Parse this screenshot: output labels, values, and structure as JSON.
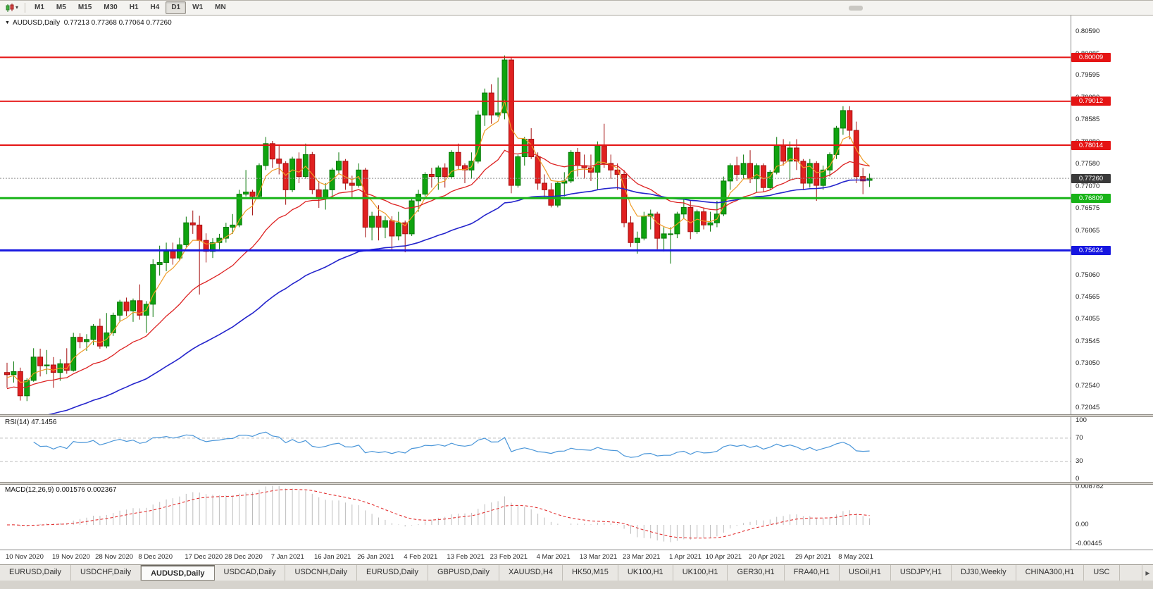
{
  "toolbar": {
    "timeframes": [
      "M1",
      "M5",
      "M15",
      "M30",
      "H1",
      "H4",
      "D1",
      "W1",
      "MN"
    ],
    "active_timeframe": "D1"
  },
  "window_caption": {
    "symbol": "AUDUSD,Daily",
    "ohlc": "0.77213 0.77368 0.77064 0.77260"
  },
  "price_axis": {
    "ticks": [
      "0.80590",
      "0.80085",
      "0.79595",
      "0.79090",
      "0.78585",
      "0.78080",
      "0.77580",
      "0.77070",
      "0.76575",
      "0.76065",
      "0.75560",
      "0.75060",
      "0.74565",
      "0.74055",
      "0.73545",
      "0.73050",
      "0.72540",
      "0.72045"
    ]
  },
  "levels": [
    {
      "label": "0.80009",
      "price": 0.80009,
      "color": "#e51414",
      "width": 2
    },
    {
      "label": "0.79012",
      "price": 0.79012,
      "color": "#e51414",
      "width": 2
    },
    {
      "label": "0.78014",
      "price": 0.78014,
      "color": "#e51414",
      "width": 2
    },
    {
      "label": "0.76809",
      "price": 0.76809,
      "color": "#18b418",
      "width": 3
    },
    {
      "label": "0.75624",
      "price": 0.75624,
      "color": "#1616e0",
      "width": 3
    }
  ],
  "current_price": {
    "label": "0.77260",
    "price": 0.7726,
    "box_color": "#3a3a3a"
  },
  "date_axis": [
    {
      "label": "10 Nov 2020",
      "i": 0
    },
    {
      "label": "19 Nov 2020",
      "i": 7
    },
    {
      "label": "28 Nov 2020",
      "i": 13.5
    },
    {
      "label": "8 Dec 2020",
      "i": 20
    },
    {
      "label": "17 Dec 2020",
      "i": 27
    },
    {
      "label": "28 Dec 2020",
      "i": 33
    },
    {
      "label": "7 Jan 2021",
      "i": 40
    },
    {
      "label": "16 Jan 2021",
      "i": 46.5
    },
    {
      "label": "26 Jan 2021",
      "i": 53
    },
    {
      "label": "4 Feb 2021",
      "i": 60
    },
    {
      "label": "13 Feb 2021",
      "i": 66.5
    },
    {
      "label": "23 Feb 2021",
      "i": 73
    },
    {
      "label": "4 Mar 2021",
      "i": 80
    },
    {
      "label": "13 Mar 2021",
      "i": 86.5
    },
    {
      "label": "23 Mar 2021",
      "i": 93
    },
    {
      "label": "1 Apr 2021",
      "i": 100
    },
    {
      "label": "10 Apr 2021",
      "i": 105.5
    },
    {
      "label": "20 Apr 2021",
      "i": 112
    },
    {
      "label": "29 Apr 2021",
      "i": 119
    },
    {
      "label": "8 May 2021",
      "i": 125.5
    }
  ],
  "rsi_panel": {
    "name": "RSI(14)",
    "value": "47.1456",
    "period": 14,
    "levels": [
      70,
      30
    ],
    "scale_labels": [
      {
        "label": "100",
        "v": 100
      },
      {
        "label": "70",
        "v": 70
      },
      {
        "label": "30",
        "v": 30
      },
      {
        "label": "0",
        "v": 0
      }
    ],
    "line_color": "#4a96d9"
  },
  "macd_panel": {
    "name": "MACD(12,26,9)",
    "values": "0.001576 0.002367",
    "fast": 12,
    "slow": 26,
    "signal": 9,
    "scale_labels": [
      {
        "label": "0.008782",
        "v": 0.008782
      },
      {
        "label": "0.00",
        "v": 0
      },
      {
        "label": "-0.00445",
        "v": -0.004455
      }
    ],
    "histogram_color": "#bdbdbd",
    "signal_color": "#e02020"
  },
  "tabs": {
    "active_index": 2,
    "items": [
      "EURUSD,Daily",
      "USDCHF,Daily",
      "AUDUSD,Daily",
      "USDCAD,Daily",
      "USDCNH,Daily",
      "EURUSD,Daily",
      "GBPUSD,Daily",
      "XAUUSD,H4",
      "HK50,M15",
      "UK100,H1",
      "UK100,H1",
      "GER30,H1",
      "FRA40,H1",
      "USOil,H1",
      "USDJPY,H1",
      "DJ30,Weekly",
      "CHINA300,H1",
      "USC"
    ],
    "scroll_right_icon": "▶"
  },
  "chart_data": {
    "type": "candlestick",
    "symbol": "AUDUSD",
    "timeframe": "Daily",
    "ohlc_current": {
      "open": 0.77213,
      "high": 0.77368,
      "low": 0.77064,
      "close": 0.7726
    },
    "price_scale": {
      "max": 0.8096,
      "min": 0.719
    },
    "bull_color": "#0fa30f",
    "bull_border": "#077707",
    "bear_color": "#e02020",
    "bear_border": "#a51212",
    "moving_averages": [
      {
        "name": "ma-fast",
        "period": 5,
        "color": "#f09c28",
        "seed": 0.727,
        "width": 1.2
      },
      {
        "name": "ma-mid",
        "period": 20,
        "color": "#dd2222",
        "seed": 0.7245,
        "width": 1.3
      },
      {
        "name": "ma-slow",
        "period": 55,
        "color": "#2424cc",
        "seed": 0.716,
        "width": 1.6
      }
    ],
    "candles": [
      [
        "2020-11-10",
        0.7285,
        0.7307,
        0.725,
        0.728
      ],
      [
        "2020-11-11",
        0.728,
        0.731,
        0.7262,
        0.7287
      ],
      [
        "2020-11-12",
        0.7287,
        0.7296,
        0.7221,
        0.7232
      ],
      [
        "2020-11-13",
        0.7232,
        0.7272,
        0.722,
        0.7267
      ],
      [
        "2020-11-16",
        0.7267,
        0.734,
        0.7264,
        0.732
      ],
      [
        "2020-11-17",
        0.732,
        0.7339,
        0.7276,
        0.73
      ],
      [
        "2020-11-18",
        0.73,
        0.7336,
        0.7281,
        0.7302
      ],
      [
        "2020-11-19",
        0.7302,
        0.732,
        0.725,
        0.7285
      ],
      [
        "2020-11-20",
        0.7285,
        0.7315,
        0.7266,
        0.7305
      ],
      [
        "2020-11-23",
        0.7305,
        0.734,
        0.7282,
        0.729
      ],
      [
        "2020-11-24",
        0.729,
        0.7375,
        0.7287,
        0.7365
      ],
      [
        "2020-11-25",
        0.7365,
        0.7374,
        0.734,
        0.7355
      ],
      [
        "2020-11-26",
        0.7355,
        0.7372,
        0.7334,
        0.736
      ],
      [
        "2020-11-27",
        0.736,
        0.7395,
        0.7347,
        0.739
      ],
      [
        "2020-11-30",
        0.739,
        0.7407,
        0.7339,
        0.7345
      ],
      [
        "2020-12-01",
        0.7345,
        0.742,
        0.734,
        0.7375
      ],
      [
        "2020-12-02",
        0.7375,
        0.7421,
        0.7368,
        0.7415
      ],
      [
        "2020-12-03",
        0.7415,
        0.745,
        0.74,
        0.7445
      ],
      [
        "2020-12-04",
        0.7445,
        0.7455,
        0.7413,
        0.7425
      ],
      [
        "2020-12-07",
        0.7425,
        0.7453,
        0.74,
        0.7448
      ],
      [
        "2020-12-08",
        0.7448,
        0.7485,
        0.7405,
        0.7415
      ],
      [
        "2020-12-09",
        0.7415,
        0.7447,
        0.7375,
        0.744
      ],
      [
        "2020-12-10",
        0.744,
        0.7542,
        0.7411,
        0.753
      ],
      [
        "2020-12-11",
        0.753,
        0.7573,
        0.7505,
        0.7535
      ],
      [
        "2020-12-14",
        0.7535,
        0.758,
        0.7515,
        0.756
      ],
      [
        "2020-12-15",
        0.756,
        0.758,
        0.753,
        0.7545
      ],
      [
        "2020-12-16",
        0.7545,
        0.7591,
        0.754,
        0.7575
      ],
      [
        "2020-12-17",
        0.7575,
        0.7639,
        0.757,
        0.7625
      ],
      [
        "2020-12-18",
        0.7625,
        0.7653,
        0.76,
        0.762
      ],
      [
        "2020-12-21",
        0.762,
        0.7641,
        0.7462,
        0.7585
      ],
      [
        "2020-12-22",
        0.7585,
        0.7601,
        0.7535,
        0.756
      ],
      [
        "2020-12-23",
        0.756,
        0.759,
        0.7545,
        0.758
      ],
      [
        "2020-12-24",
        0.758,
        0.76,
        0.7565,
        0.759
      ],
      [
        "2020-12-28",
        0.759,
        0.7625,
        0.758,
        0.7615
      ],
      [
        "2020-12-29",
        0.7615,
        0.7645,
        0.76,
        0.762
      ],
      [
        "2020-12-30",
        0.762,
        0.77,
        0.7615,
        0.769
      ],
      [
        "2020-12-31",
        0.769,
        0.7745,
        0.7685,
        0.7695
      ],
      [
        "2021-01-04",
        0.7695,
        0.77,
        0.7642,
        0.7685
      ],
      [
        "2021-01-05",
        0.7685,
        0.776,
        0.768,
        0.7755
      ],
      [
        "2021-01-06",
        0.7755,
        0.782,
        0.7745,
        0.7805
      ],
      [
        "2021-01-07",
        0.7805,
        0.7811,
        0.775,
        0.777
      ],
      [
        "2021-01-08",
        0.777,
        0.78,
        0.7735,
        0.776
      ],
      [
        "2021-01-11",
        0.776,
        0.7765,
        0.7666,
        0.77
      ],
      [
        "2021-01-12",
        0.77,
        0.7775,
        0.7695,
        0.777
      ],
      [
        "2021-01-13",
        0.777,
        0.7785,
        0.7715,
        0.773
      ],
      [
        "2021-01-14",
        0.773,
        0.7805,
        0.7725,
        0.778
      ],
      [
        "2021-01-15",
        0.778,
        0.7786,
        0.769,
        0.77
      ],
      [
        "2021-01-18",
        0.77,
        0.772,
        0.7659,
        0.768
      ],
      [
        "2021-01-19",
        0.768,
        0.7715,
        0.7655,
        0.77
      ],
      [
        "2021-01-20",
        0.77,
        0.775,
        0.7685,
        0.7745
      ],
      [
        "2021-01-21",
        0.7745,
        0.7785,
        0.7735,
        0.7765
      ],
      [
        "2021-01-22",
        0.7765,
        0.777,
        0.77,
        0.7715
      ],
      [
        "2021-01-25",
        0.7715,
        0.7732,
        0.768,
        0.771
      ],
      [
        "2021-01-26",
        0.771,
        0.776,
        0.7705,
        0.7745
      ],
      [
        "2021-01-27",
        0.7745,
        0.775,
        0.7592,
        0.7615
      ],
      [
        "2021-01-28",
        0.7615,
        0.765,
        0.7585,
        0.764
      ],
      [
        "2021-01-29",
        0.764,
        0.7665,
        0.7585,
        0.7615
      ],
      [
        "2021-02-01",
        0.7615,
        0.764,
        0.759,
        0.763
      ],
      [
        "2021-02-02",
        0.763,
        0.764,
        0.7562,
        0.7595
      ],
      [
        "2021-02-03",
        0.7595,
        0.765,
        0.7585,
        0.7625
      ],
      [
        "2021-02-04",
        0.7625,
        0.763,
        0.7558,
        0.76
      ],
      [
        "2021-02-05",
        0.76,
        0.768,
        0.7595,
        0.7675
      ],
      [
        "2021-02-08",
        0.7675,
        0.77,
        0.765,
        0.769
      ],
      [
        "2021-02-09",
        0.769,
        0.774,
        0.7685,
        0.7735
      ],
      [
        "2021-02-10",
        0.7735,
        0.775,
        0.7705,
        0.773
      ],
      [
        "2021-02-11",
        0.773,
        0.7755,
        0.77,
        0.775
      ],
      [
        "2021-02-12",
        0.775,
        0.776,
        0.7705,
        0.773
      ],
      [
        "2021-02-15",
        0.773,
        0.779,
        0.7725,
        0.7785
      ],
      [
        "2021-02-16",
        0.7785,
        0.7805,
        0.7745,
        0.7755
      ],
      [
        "2021-02-17",
        0.7755,
        0.776,
        0.7715,
        0.7745
      ],
      [
        "2021-02-18",
        0.7745,
        0.7785,
        0.7725,
        0.7765
      ],
      [
        "2021-02-19",
        0.7765,
        0.788,
        0.776,
        0.787
      ],
      [
        "2021-02-22",
        0.787,
        0.793,
        0.7845,
        0.792
      ],
      [
        "2021-02-23",
        0.792,
        0.794,
        0.785,
        0.787
      ],
      [
        "2021-02-24",
        0.787,
        0.7955,
        0.7865,
        0.7875
      ],
      [
        "2021-02-25",
        0.7875,
        0.8005,
        0.786,
        0.7995
      ],
      [
        "2021-02-26",
        0.7995,
        0.8,
        0.7692,
        0.771
      ],
      [
        "2021-03-01",
        0.771,
        0.778,
        0.7705,
        0.7775
      ],
      [
        "2021-03-02",
        0.7775,
        0.782,
        0.7755,
        0.7815
      ],
      [
        "2021-03-03",
        0.7815,
        0.784,
        0.777,
        0.7775
      ],
      [
        "2021-03-04",
        0.7775,
        0.7785,
        0.77,
        0.7715
      ],
      [
        "2021-03-05",
        0.7715,
        0.7735,
        0.768,
        0.77
      ],
      [
        "2021-03-08",
        0.77,
        0.7715,
        0.766,
        0.7665
      ],
      [
        "2021-03-09",
        0.7665,
        0.772,
        0.766,
        0.7715
      ],
      [
        "2021-03-10",
        0.7715,
        0.774,
        0.7685,
        0.772
      ],
      [
        "2021-03-11",
        0.772,
        0.779,
        0.7715,
        0.7785
      ],
      [
        "2021-03-12",
        0.7785,
        0.7795,
        0.773,
        0.7755
      ],
      [
        "2021-03-15",
        0.7755,
        0.778,
        0.7725,
        0.775
      ],
      [
        "2021-03-16",
        0.775,
        0.778,
        0.772,
        0.774
      ],
      [
        "2021-03-17",
        0.774,
        0.781,
        0.77,
        0.78
      ],
      [
        "2021-03-18",
        0.78,
        0.785,
        0.775,
        0.776
      ],
      [
        "2021-03-19",
        0.776,
        0.778,
        0.7725,
        0.7745
      ],
      [
        "2021-03-22",
        0.7745,
        0.776,
        0.77,
        0.7735
      ],
      [
        "2021-03-23",
        0.7735,
        0.7745,
        0.7615,
        0.7625
      ],
      [
        "2021-03-24",
        0.7625,
        0.764,
        0.757,
        0.758
      ],
      [
        "2021-03-25",
        0.758,
        0.7605,
        0.7555,
        0.759
      ],
      [
        "2021-03-26",
        0.759,
        0.765,
        0.7585,
        0.764
      ],
      [
        "2021-03-29",
        0.764,
        0.7655,
        0.761,
        0.7645
      ],
      [
        "2021-03-30",
        0.7645,
        0.765,
        0.7565,
        0.759
      ],
      [
        "2021-03-31",
        0.759,
        0.7615,
        0.756,
        0.76
      ],
      [
        "2021-04-01",
        0.76,
        0.7615,
        0.7532,
        0.76
      ],
      [
        "2021-04-05",
        0.76,
        0.765,
        0.759,
        0.7645
      ],
      [
        "2021-04-06",
        0.7645,
        0.768,
        0.7635,
        0.766
      ],
      [
        "2021-04-07",
        0.766,
        0.7675,
        0.7588,
        0.7605
      ],
      [
        "2021-04-08",
        0.7605,
        0.7655,
        0.76,
        0.765
      ],
      [
        "2021-04-09",
        0.765,
        0.766,
        0.761,
        0.762
      ],
      [
        "2021-04-12",
        0.762,
        0.765,
        0.7605,
        0.7625
      ],
      [
        "2021-04-13",
        0.7625,
        0.7675,
        0.7615,
        0.7645
      ],
      [
        "2021-04-14",
        0.7645,
        0.773,
        0.764,
        0.772
      ],
      [
        "2021-04-15",
        0.772,
        0.776,
        0.77,
        0.7755
      ],
      [
        "2021-04-16",
        0.7755,
        0.7775,
        0.772,
        0.7735
      ],
      [
        "2021-04-19",
        0.7735,
        0.778,
        0.7725,
        0.776
      ],
      [
        "2021-04-20",
        0.776,
        0.779,
        0.7715,
        0.7725
      ],
      [
        "2021-04-21",
        0.7725,
        0.776,
        0.7695,
        0.7755
      ],
      [
        "2021-04-22",
        0.7755,
        0.776,
        0.7695,
        0.7705
      ],
      [
        "2021-04-23",
        0.7705,
        0.7745,
        0.77,
        0.774
      ],
      [
        "2021-04-26",
        0.774,
        0.782,
        0.7735,
        0.78
      ],
      [
        "2021-04-27",
        0.78,
        0.7815,
        0.7755,
        0.7765
      ],
      [
        "2021-04-28",
        0.7765,
        0.781,
        0.772,
        0.7795
      ],
      [
        "2021-04-29",
        0.7795,
        0.7815,
        0.7745,
        0.7765
      ],
      [
        "2021-04-30",
        0.7765,
        0.777,
        0.77,
        0.7715
      ],
      [
        "2021-05-03",
        0.7715,
        0.777,
        0.7705,
        0.776
      ],
      [
        "2021-05-04",
        0.776,
        0.7765,
        0.7675,
        0.771
      ],
      [
        "2021-05-05",
        0.771,
        0.7755,
        0.77,
        0.7745
      ],
      [
        "2021-05-06",
        0.7745,
        0.7785,
        0.773,
        0.778
      ],
      [
        "2021-05-07",
        0.778,
        0.7845,
        0.777,
        0.784
      ],
      [
        "2021-05-10",
        0.784,
        0.789,
        0.7825,
        0.788
      ],
      [
        "2021-05-11",
        0.788,
        0.789,
        0.7815,
        0.7835
      ],
      [
        "2021-05-12",
        0.7835,
        0.7855,
        0.7715,
        0.773
      ],
      [
        "2021-05-13",
        0.773,
        0.775,
        0.769,
        0.772
      ],
      [
        "2021-05-14",
        0.77213,
        0.77368,
        0.77064,
        0.7726
      ]
    ]
  }
}
